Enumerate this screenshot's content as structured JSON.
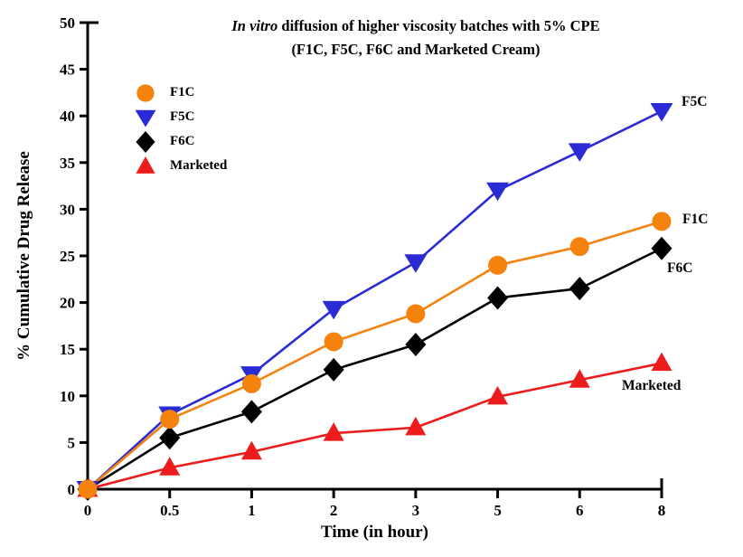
{
  "figure": {
    "title_italic": "In vitro",
    "title_rest": " diffusion of higher viscosity batches with 5% CPE",
    "subtitle": "(F1C, F5C, F6C and Marketed Cream)"
  },
  "chart_data": {
    "type": "line",
    "title": "In vitro diffusion of higher viscosity batches with 5% CPE (F1C, F5C, F6C and Marketed Cream)",
    "xlabel": "Time (in hour)",
    "ylabel": "% Cumulative Drug Release",
    "categories": [
      "0",
      "0.5",
      "1",
      "2",
      "3",
      "5",
      "6",
      "8"
    ],
    "ylim": [
      0,
      50
    ],
    "ytick_step": 5,
    "yticks": [
      0,
      5,
      10,
      15,
      20,
      25,
      30,
      35,
      40,
      45,
      50
    ],
    "grid": false,
    "legend_position": "top-left-inside",
    "series": [
      {
        "name": "F1C",
        "color": "#F5820D",
        "marker": "circle",
        "values": [
          0,
          7.5,
          11.3,
          15.8,
          18.8,
          24.0,
          26.0,
          28.7
        ]
      },
      {
        "name": "F5C",
        "color": "#2B2BD5",
        "marker": "triangle-down",
        "values": [
          0,
          8.0,
          12.3,
          19.3,
          24.3,
          32.0,
          36.2,
          40.5
        ]
      },
      {
        "name": "F6C",
        "color": "#000000",
        "marker": "diamond",
        "values": [
          0,
          5.5,
          8.3,
          12.8,
          15.5,
          20.5,
          21.5,
          25.8
        ]
      },
      {
        "name": "Marketed",
        "color": "#ED1C1C",
        "marker": "triangle-up",
        "values": [
          0,
          2.3,
          4.0,
          6.0,
          6.6,
          9.9,
          11.7,
          13.5
        ]
      }
    ],
    "end_labels": [
      "F5C",
      "F1C",
      "F6C",
      "Marketed"
    ]
  }
}
